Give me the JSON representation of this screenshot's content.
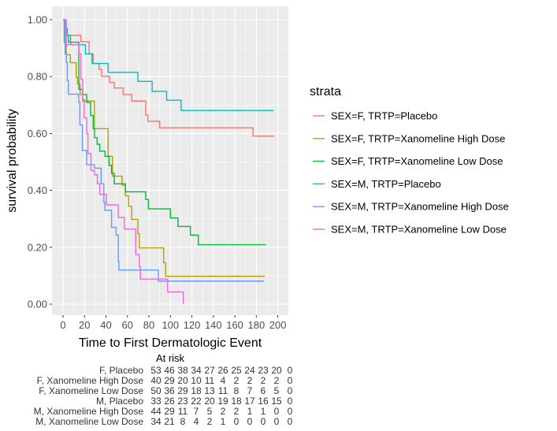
{
  "chart_data": {
    "type": "line",
    "step": true,
    "xlabel": "Time to First Dermatologic Event",
    "ylabel": "survival probability",
    "xlim": [
      0,
      200
    ],
    "ylim": [
      0,
      1
    ],
    "xticks": [
      0,
      20,
      40,
      60,
      80,
      100,
      120,
      140,
      160,
      180,
      200
    ],
    "yticks": [
      "0.00",
      "0.20",
      "0.40",
      "0.60",
      "0.80",
      "1.00"
    ],
    "grid": true,
    "legend": {
      "title": "strata",
      "placement": "right"
    },
    "series": [
      {
        "name": "SEX=F, TRTP=Placebo",
        "color": "#F8766D",
        "steps": [
          [
            0,
            1
          ],
          [
            2,
            0.945
          ],
          [
            16.5,
            0.923
          ],
          [
            24.3,
            0.88
          ],
          [
            28,
            0.846
          ],
          [
            33.6,
            0.825
          ],
          [
            36,
            0.801
          ],
          [
            43.3,
            0.78
          ],
          [
            47.7,
            0.76
          ],
          [
            56,
            0.737
          ],
          [
            64,
            0.714
          ],
          [
            77,
            0.665
          ],
          [
            79,
            0.643
          ],
          [
            90,
            0.62
          ],
          [
            177,
            0.591
          ],
          [
            197,
            0.591
          ]
        ]
      },
      {
        "name": "SEX=F, TRTP=Xanomeline High Dose",
        "color": "#B79F00",
        "steps": [
          [
            0,
            1
          ],
          [
            1,
            0.92
          ],
          [
            3,
            0.877
          ],
          [
            6.8,
            0.849
          ],
          [
            12.2,
            0.798
          ],
          [
            13.5,
            0.775
          ],
          [
            15.9,
            0.737
          ],
          [
            18.3,
            0.714
          ],
          [
            29.3,
            0.617
          ],
          [
            42,
            0.52
          ],
          [
            46,
            0.45
          ],
          [
            55,
            0.418
          ],
          [
            58,
            0.381
          ],
          [
            61,
            0.344
          ],
          [
            64,
            0.298
          ],
          [
            69.7,
            0.248
          ],
          [
            71,
            0.198
          ],
          [
            93.7,
            0.146
          ],
          [
            95.5,
            0.098
          ],
          [
            188,
            0.098
          ]
        ]
      },
      {
        "name": "SEX=F, TRTP=Xanomeline Low Dose",
        "color": "#00BA38",
        "steps": [
          [
            0,
            1
          ],
          [
            2,
            0.945
          ],
          [
            5,
            0.921
          ],
          [
            14.7,
            0.755
          ],
          [
            18.3,
            0.737
          ],
          [
            22,
            0.709
          ],
          [
            25.7,
            0.663
          ],
          [
            28.1,
            0.617
          ],
          [
            29.3,
            0.585
          ],
          [
            31.8,
            0.562
          ],
          [
            34.2,
            0.538
          ],
          [
            39.1,
            0.52
          ],
          [
            42.8,
            0.488
          ],
          [
            45.2,
            0.46
          ],
          [
            47.7,
            0.423
          ],
          [
            58,
            0.395
          ],
          [
            77,
            0.368
          ],
          [
            79.5,
            0.335
          ],
          [
            100,
            0.303
          ],
          [
            107,
            0.273
          ],
          [
            118.6,
            0.243
          ],
          [
            126,
            0.209
          ],
          [
            189,
            0.209
          ]
        ]
      },
      {
        "name": "SEX=M, TRTP=Placebo",
        "color": "#00BFC4",
        "steps": [
          [
            0,
            1
          ],
          [
            2,
            0.97
          ],
          [
            4,
            0.945
          ],
          [
            7,
            0.912
          ],
          [
            20.8,
            0.88
          ],
          [
            27,
            0.846
          ],
          [
            42,
            0.815
          ],
          [
            69.7,
            0.783
          ],
          [
            83,
            0.748
          ],
          [
            96.5,
            0.717
          ],
          [
            110,
            0.681
          ],
          [
            196,
            0.681
          ]
        ]
      },
      {
        "name": "SEX=M, TRTP=Xanomeline High Dose",
        "color": "#619CFF",
        "steps": [
          [
            0,
            1
          ],
          [
            2,
            0.88
          ],
          [
            3,
            0.85
          ],
          [
            4,
            0.786
          ],
          [
            5,
            0.738
          ],
          [
            14.6,
            0.71
          ],
          [
            15.7,
            0.63
          ],
          [
            18,
            0.54
          ],
          [
            22,
            0.49
          ],
          [
            29.3,
            0.478
          ],
          [
            35.5,
            0.423
          ],
          [
            38,
            0.358
          ],
          [
            39,
            0.33
          ],
          [
            45.2,
            0.27
          ],
          [
            49.5,
            0.243
          ],
          [
            51.4,
            0.15
          ],
          [
            52,
            0.12
          ],
          [
            88.8,
            0.081
          ],
          [
            187,
            0.081
          ]
        ]
      },
      {
        "name": "SEX=M, TRTP=Xanomeline Low Dose",
        "color": "#F564E3",
        "steps": [
          [
            0,
            1
          ],
          [
            3,
            0.912
          ],
          [
            14.7,
            0.88
          ],
          [
            16.6,
            0.79
          ],
          [
            18.3,
            0.72
          ],
          [
            19.6,
            0.655
          ],
          [
            22,
            0.6
          ],
          [
            23.2,
            0.53
          ],
          [
            26,
            0.47
          ],
          [
            29.3,
            0.455
          ],
          [
            32,
            0.423
          ],
          [
            34.2,
            0.386
          ],
          [
            40.4,
            0.349
          ],
          [
            51.4,
            0.305
          ],
          [
            57,
            0.264
          ],
          [
            67.7,
            0.174
          ],
          [
            71,
            0.131
          ],
          [
            72,
            0.088
          ],
          [
            97.4,
            0.043
          ],
          [
            112,
            0
          ]
        ]
      }
    ],
    "risk_table": {
      "title": "At risk",
      "rows": [
        {
          "label": "F, Placebo",
          "values": [
            "53",
            "46",
            "38",
            "34",
            "27",
            "26",
            "25",
            "24",
            "23",
            "20",
            "0"
          ]
        },
        {
          "label": "F, Xanomeline High Dose",
          "values": [
            "40",
            "29",
            "20",
            "10",
            "11",
            "4",
            "2",
            "2",
            "2",
            "2",
            "0"
          ]
        },
        {
          "label": "F, Xanomeline Low Dose",
          "values": [
            "50",
            "36",
            "29",
            "18",
            "13",
            "11",
            "8",
            "7",
            "6",
            "5",
            "0"
          ]
        },
        {
          "label": "M, Placebo",
          "values": [
            "33",
            "26",
            "23",
            "22",
            "20",
            "19",
            "18",
            "17",
            "16",
            "15",
            "0"
          ]
        },
        {
          "label": "M, Xanomeline High Dose",
          "values": [
            "44",
            "29",
            "11",
            "7",
            "5",
            "2",
            "2",
            "1",
            "1",
            "0",
            "0"
          ]
        },
        {
          "label": "M, Xanomeline Low Dose",
          "values": [
            "34",
            "21",
            "8",
            "4",
            "2",
            "1",
            "0",
            "0",
            "0",
            "0",
            "0"
          ]
        }
      ]
    }
  }
}
